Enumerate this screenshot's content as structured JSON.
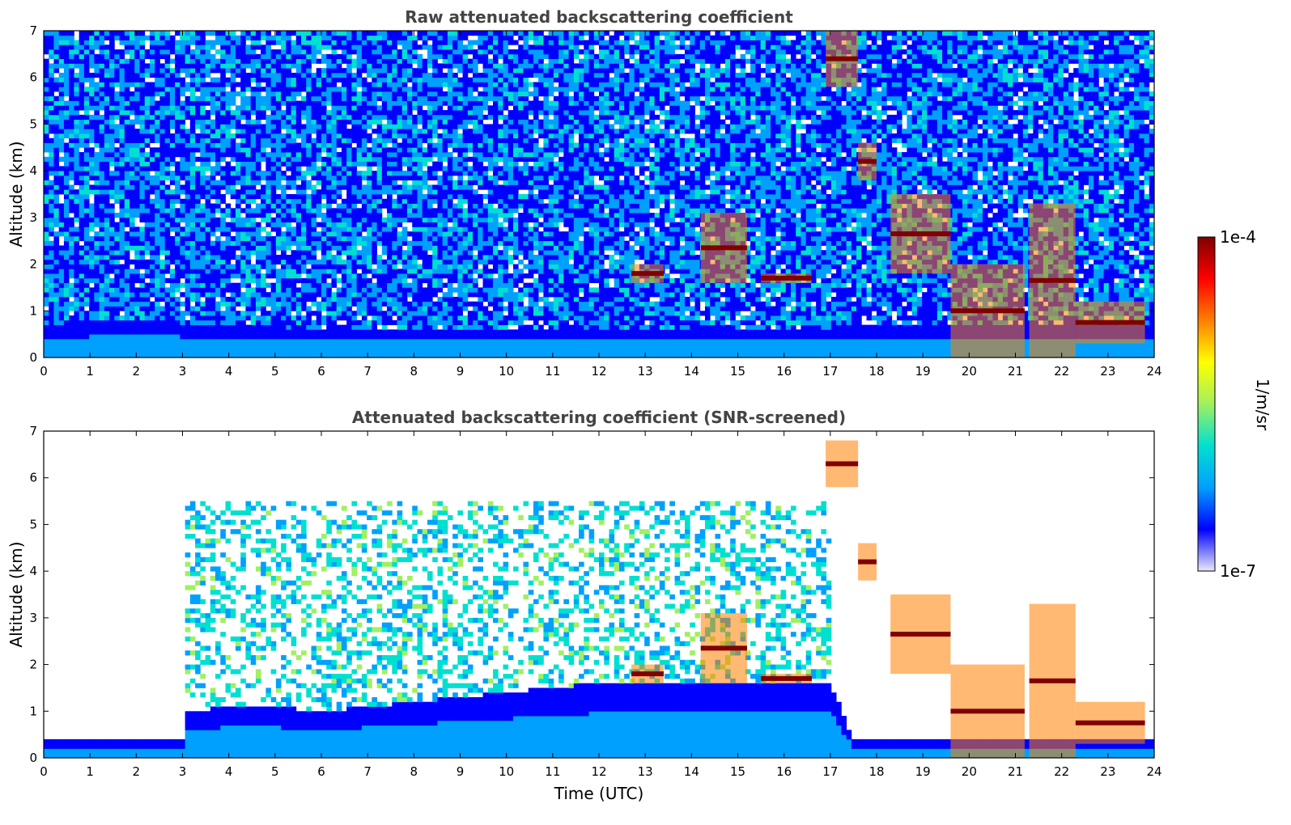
{
  "figure": {
    "colorbar": {
      "label": "1/m/sr",
      "max_label": "1e-4",
      "min_label": "1e-7",
      "scale": "log",
      "range": [
        1e-07,
        0.0001
      ],
      "colormap": [
        "#e8e8f8",
        "#0000ff",
        "#00a0ff",
        "#00e0d0",
        "#a0f060",
        "#ffff00",
        "#ff8000",
        "#ff0000",
        "#800000"
      ]
    }
  },
  "chart_data": [
    {
      "type": "heatmap",
      "title": "Raw attenuated backscattering coefficient",
      "xlabel": "",
      "ylabel": "Altitude (km)",
      "xlim": [
        0,
        24
      ],
      "ylim": [
        0,
        7
      ],
      "xticks": [
        "0",
        "1",
        "2",
        "3",
        "4",
        "5",
        "6",
        "7",
        "8",
        "9",
        "10",
        "11",
        "12",
        "13",
        "14",
        "15",
        "16",
        "17",
        "18",
        "19",
        "20",
        "21",
        "22",
        "23",
        "24"
      ],
      "yticks": [
        "0",
        "1",
        "2",
        "3",
        "4",
        "5",
        "6",
        "7"
      ],
      "grid": false,
      "boundary_layer": {
        "x": [
          0,
          1,
          2,
          3,
          4,
          5,
          6,
          7,
          8,
          9,
          10,
          11,
          12,
          13,
          14,
          15,
          16,
          17,
          18
        ],
        "top_km": [
          0.7,
          0.75,
          0.8,
          0.75,
          0.7,
          0.65,
          0.6,
          0.6,
          0.6,
          0.6,
          0.6,
          0.6,
          0.6,
          0.6,
          0.6,
          0.6,
          0.6,
          0.65,
          0.7
        ]
      },
      "clouds": [
        {
          "x": [
            16.9,
            17.6
          ],
          "alt": [
            5.8,
            7.0
          ],
          "level": "high"
        },
        {
          "x": [
            17.6,
            18.0
          ],
          "alt": [
            3.8,
            4.6
          ],
          "level": "high"
        },
        {
          "x": [
            12.7,
            13.4
          ],
          "alt": [
            1.6,
            2.0
          ],
          "level": "high"
        },
        {
          "x": [
            14.2,
            15.2
          ],
          "alt": [
            1.6,
            3.1
          ],
          "level": "high"
        },
        {
          "x": [
            15.5,
            16.6
          ],
          "alt": [
            1.6,
            1.8
          ],
          "level": "high"
        },
        {
          "x": [
            18.3,
            19.6
          ],
          "alt": [
            1.8,
            3.5
          ],
          "level": "high"
        },
        {
          "x": [
            19.6,
            21.2
          ],
          "alt": [
            0.0,
            2.0
          ],
          "level": "high"
        },
        {
          "x": [
            21.3,
            22.3
          ],
          "alt": [
            0.0,
            3.3
          ],
          "level": "high"
        },
        {
          "x": [
            22.3,
            23.8
          ],
          "alt": [
            0.3,
            1.2
          ],
          "level": "high"
        }
      ]
    },
    {
      "type": "heatmap",
      "title": "Attenuated backscattering coefficient (SNR-screened)",
      "xlabel": "Time (UTC)",
      "ylabel": "Altitude (km)",
      "xlim": [
        0,
        24
      ],
      "ylim": [
        0,
        7
      ],
      "xticks": [
        "0",
        "1",
        "2",
        "3",
        "4",
        "5",
        "6",
        "7",
        "8",
        "9",
        "10",
        "11",
        "12",
        "13",
        "14",
        "15",
        "16",
        "17",
        "18",
        "19",
        "20",
        "21",
        "22",
        "23",
        "24"
      ],
      "yticks": [
        "0",
        "1",
        "2",
        "3",
        "4",
        "5",
        "6",
        "7"
      ],
      "grid": false,
      "boundary_layer": {
        "x": [
          0,
          3,
          3.1,
          4,
          5,
          6,
          7,
          8,
          9,
          10,
          11,
          12,
          13,
          14,
          15,
          16,
          17,
          17.5,
          18,
          19,
          20
        ],
        "top_km": [
          0.4,
          0.4,
          1.0,
          1.1,
          1.1,
          1.0,
          1.1,
          1.2,
          1.3,
          1.4,
          1.5,
          1.6,
          1.6,
          1.6,
          1.6,
          1.6,
          1.6,
          0.4,
          0.4,
          0.4,
          0.4
        ]
      },
      "clouds": [
        {
          "x": [
            16.9,
            17.6
          ],
          "alt": [
            5.8,
            6.8
          ],
          "level": "high"
        },
        {
          "x": [
            17.6,
            18.0
          ],
          "alt": [
            3.8,
            4.6
          ],
          "level": "high"
        },
        {
          "x": [
            12.7,
            13.4
          ],
          "alt": [
            1.6,
            2.0
          ],
          "level": "high"
        },
        {
          "x": [
            14.2,
            15.2
          ],
          "alt": [
            1.6,
            3.1
          ],
          "level": "high"
        },
        {
          "x": [
            15.5,
            16.6
          ],
          "alt": [
            1.6,
            1.8
          ],
          "level": "high"
        },
        {
          "x": [
            18.3,
            19.6
          ],
          "alt": [
            1.8,
            3.5
          ],
          "level": "high"
        },
        {
          "x": [
            19.6,
            21.2
          ],
          "alt": [
            0.0,
            2.0
          ],
          "level": "high"
        },
        {
          "x": [
            21.3,
            22.3
          ],
          "alt": [
            0.0,
            3.3
          ],
          "level": "high"
        },
        {
          "x": [
            22.3,
            23.8
          ],
          "alt": [
            0.3,
            1.2
          ],
          "level": "high"
        }
      ]
    }
  ]
}
